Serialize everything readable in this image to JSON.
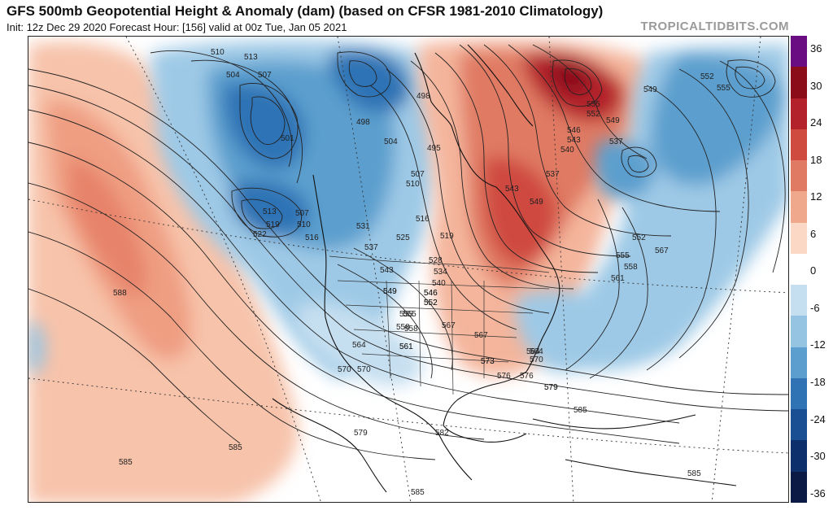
{
  "header": {
    "title": "GFS 500mb Geopotential Height & Anomaly (dam) (based on CFSR 1981-2010 Climatology)",
    "subtitle": "Init: 12z Dec 29 2020   Forecast Hour: [156]   valid at 00z Tue, Jan 05 2021",
    "brand": "TROPICALTIDBITS.COM"
  },
  "colorbar": {
    "labels": [
      "36",
      "30",
      "24",
      "18",
      "12",
      "6",
      "0",
      "-6",
      "-12",
      "-18",
      "-24",
      "-30",
      "-36"
    ],
    "colors": [
      "#6a0d83",
      "#8b0d1a",
      "#b3212b",
      "#cf4a3f",
      "#e07a63",
      "#f0a88c",
      "#fbd8c6",
      "#ffffff",
      "#c6dff0",
      "#94c4e2",
      "#5c9fce",
      "#2f73b5",
      "#1a4f94",
      "#0d2f6b",
      "#0a1a45"
    ]
  },
  "contour_labels": [
    {
      "text": "510"
    },
    {
      "text": "513"
    },
    {
      "text": "504"
    },
    {
      "text": "507"
    },
    {
      "text": "498"
    },
    {
      "text": "501"
    },
    {
      "text": "513"
    },
    {
      "text": "507"
    },
    {
      "text": "510"
    },
    {
      "text": "519"
    },
    {
      "text": "522"
    },
    {
      "text": "516"
    },
    {
      "text": "531"
    },
    {
      "text": "537"
    },
    {
      "text": "525"
    },
    {
      "text": "519"
    },
    {
      "text": "528"
    },
    {
      "text": "534"
    },
    {
      "text": "540"
    },
    {
      "text": "543"
    },
    {
      "text": "546"
    },
    {
      "text": "549"
    },
    {
      "text": "552"
    },
    {
      "text": "555"
    },
    {
      "text": "558"
    },
    {
      "text": "561"
    },
    {
      "text": "564"
    },
    {
      "text": "567"
    },
    {
      "text": "570"
    },
    {
      "text": "573"
    },
    {
      "text": "576"
    },
    {
      "text": "579"
    },
    {
      "text": "582"
    },
    {
      "text": "585"
    },
    {
      "text": "588"
    },
    {
      "text": "585"
    },
    {
      "text": "585"
    },
    {
      "text": "585"
    },
    {
      "text": "585"
    },
    {
      "text": "498"
    },
    {
      "text": "504"
    },
    {
      "text": "495"
    },
    {
      "text": "507"
    },
    {
      "text": "510"
    },
    {
      "text": "516"
    },
    {
      "text": "537"
    },
    {
      "text": "543"
    },
    {
      "text": "549"
    },
    {
      "text": "555"
    },
    {
      "text": "552"
    },
    {
      "text": "549"
    },
    {
      "text": "546"
    },
    {
      "text": "543"
    },
    {
      "text": "540"
    },
    {
      "text": "537"
    },
    {
      "text": "549"
    },
    {
      "text": "552"
    },
    {
      "text": "555"
    },
    {
      "text": "555"
    },
    {
      "text": "558"
    },
    {
      "text": "561"
    },
    {
      "text": "567"
    },
    {
      "text": "552"
    },
    {
      "text": "564"
    },
    {
      "text": "570"
    },
    {
      "text": "579"
    },
    {
      "text": "576"
    },
    {
      "text": "573"
    },
    {
      "text": "567"
    },
    {
      "text": "561"
    },
    {
      "text": "558"
    },
    {
      "text": "555"
    },
    {
      "text": "552"
    },
    {
      "text": "546"
    },
    {
      "text": "549"
    },
    {
      "text": "564"
    },
    {
      "text": "570"
    },
    {
      "text": "579"
    }
  ]
}
